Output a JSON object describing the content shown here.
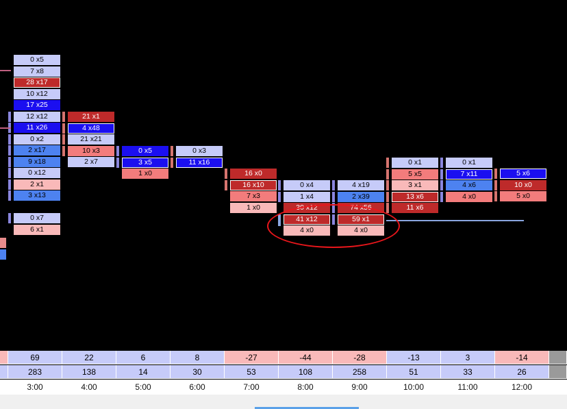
{
  "colors": {
    "background": "#000000",
    "light_blue": "#c6cbf9",
    "mid_blue": "#4d82f0",
    "deep_blue": "#1b0ff0",
    "light_red": "#f9b9b9",
    "mid_red": "#f37c7c",
    "deep_red": "#be2a2a",
    "bid_bar": "#8a86de",
    "ask_bar": "#d6746f",
    "annotation": "#e8161b"
  },
  "time_axis": [
    "3:00",
    "4:00",
    "5:00",
    "6:00",
    "7:00",
    "8:00",
    "9:00",
    "10:00",
    "11:00",
    "12:00"
  ],
  "delta_row": [
    "69",
    "22",
    "6",
    "8",
    "-27",
    "-44",
    "-28",
    "-13",
    "3",
    "-14"
  ],
  "delta_colors": [
    "lb",
    "lb",
    "lb",
    "lb",
    "lr",
    "lr",
    "lr",
    "lb",
    "lb",
    "lr"
  ],
  "volume_row": [
    "283",
    "138",
    "14",
    "30",
    "53",
    "108",
    "258",
    "51",
    "33",
    "26"
  ],
  "columns": [
    {
      "time": "3:00",
      "cells": [
        {
          "text": "0 x5",
          "c": "lb"
        },
        {
          "text": "7 x8",
          "c": "lb"
        },
        {
          "text": "28 x17",
          "c": "dr",
          "hl": true
        },
        {
          "text": "10 x12",
          "c": "lb"
        },
        {
          "text": "17 x25",
          "c": "db"
        },
        {
          "text": "12 x12",
          "c": "lb"
        },
        {
          "text": "11 x26",
          "c": "db"
        },
        {
          "text": "0 x2",
          "c": "lb"
        },
        {
          "text": "2 x17",
          "c": "mb"
        },
        {
          "text": "9 x18",
          "c": "mb"
        },
        {
          "text": "0 x12",
          "c": "lb"
        },
        {
          "text": "2 x1",
          "c": "lr"
        },
        {
          "text": "3 x13",
          "c": "mb"
        },
        {
          "text": "",
          "c": "gap"
        },
        {
          "text": "0 x7",
          "c": "lb"
        },
        {
          "text": "6 x1",
          "c": "lr"
        }
      ]
    },
    {
      "time": "4:00",
      "cells": [
        {
          "text": "21 x1",
          "c": "dr"
        },
        {
          "text": "4 x48",
          "c": "db",
          "hl": true
        },
        {
          "text": "21 x21",
          "c": "lb"
        },
        {
          "text": "10 x3",
          "c": "mr"
        },
        {
          "text": "2 x7",
          "c": "lb"
        }
      ]
    },
    {
      "time": "5:00",
      "cells": [
        {
          "text": "0 x5",
          "c": "db"
        },
        {
          "text": "3 x5",
          "c": "db",
          "hl": true
        },
        {
          "text": "1 x0",
          "c": "mr"
        }
      ]
    },
    {
      "time": "6:00",
      "cells": [
        {
          "text": "0 x3",
          "c": "lb"
        },
        {
          "text": "11 x16",
          "c": "db",
          "hl": true
        }
      ]
    },
    {
      "time": "7:00",
      "cells": [
        {
          "text": "16 x0",
          "c": "dr"
        },
        {
          "text": "16 x10",
          "c": "dr",
          "hl": true
        },
        {
          "text": "7 x3",
          "c": "mr"
        },
        {
          "text": "1 x0",
          "c": "lr"
        }
      ]
    },
    {
      "time": "8:00",
      "cells": [
        {
          "text": "0 x4",
          "c": "lb"
        },
        {
          "text": "1 x4",
          "c": "lb"
        },
        {
          "text": "30 x12",
          "c": "dr"
        },
        {
          "text": "41 x12",
          "c": "dr",
          "hl": true
        },
        {
          "text": "4 x0",
          "c": "lr"
        }
      ]
    },
    {
      "time": "9:00",
      "cells": [
        {
          "text": "4 x19",
          "c": "lb"
        },
        {
          "text": "2 x39",
          "c": "mb"
        },
        {
          "text": "74 x56",
          "c": "dr"
        },
        {
          "text": "59 x1",
          "c": "dr",
          "hl": true
        },
        {
          "text": "4 x0",
          "c": "lr"
        }
      ]
    },
    {
      "time": "10:00",
      "cells": [
        {
          "text": "0 x1",
          "c": "lb"
        },
        {
          "text": "5 x5",
          "c": "mr"
        },
        {
          "text": "3 x1",
          "c": "lr"
        },
        {
          "text": "13 x6",
          "c": "dr",
          "hl": true
        },
        {
          "text": "11 x6",
          "c": "dr"
        }
      ]
    },
    {
      "time": "11:00",
      "cells": [
        {
          "text": "0 x1",
          "c": "lb"
        },
        {
          "text": "7 x11",
          "c": "db",
          "hl": true
        },
        {
          "text": "4 x6",
          "c": "mb"
        },
        {
          "text": "4 x0",
          "c": "mr"
        }
      ]
    },
    {
      "time": "12:00",
      "cells": [
        {
          "text": "5 x6",
          "c": "db",
          "hl": true
        },
        {
          "text": "10 x0",
          "c": "dr"
        },
        {
          "text": "5 x0",
          "c": "mr"
        }
      ]
    }
  ]
}
